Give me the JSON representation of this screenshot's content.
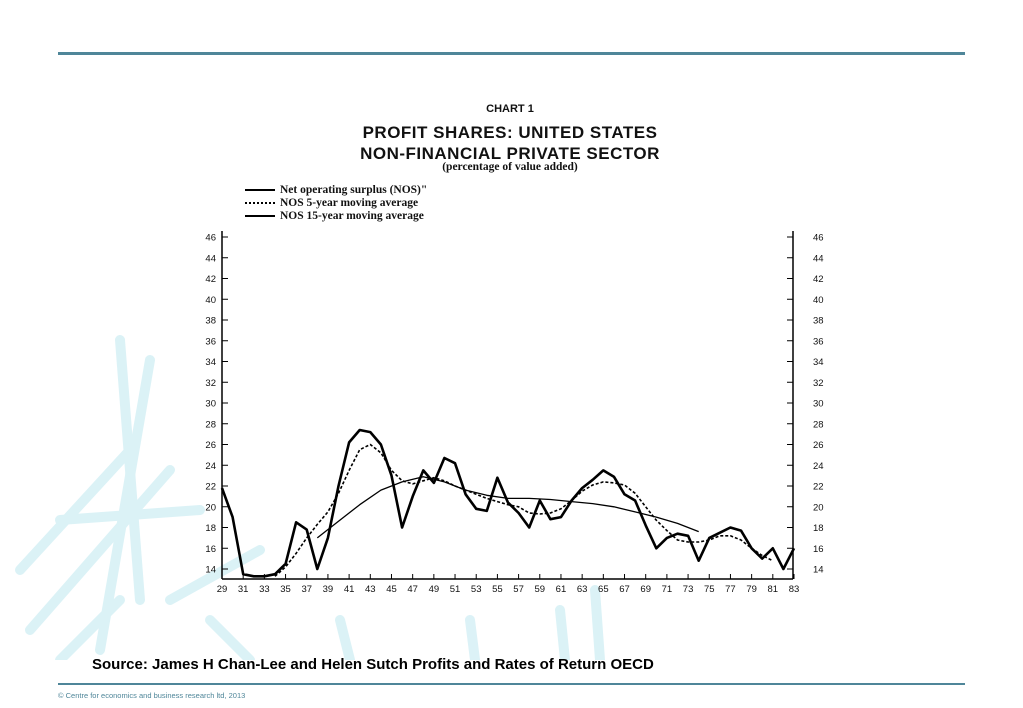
{
  "header": {
    "chart_label": "CHART 1"
  },
  "chart_data": {
    "type": "line",
    "title": "PROFIT SHARES: UNITED STATES",
    "title_line2": "NON-FINANCIAL PRIVATE SECTOR",
    "subtitle": "(percentage of value added)",
    "x_tick_labels": [
      "29",
      "31",
      "33",
      "35",
      "37",
      "39",
      "41",
      "43",
      "45",
      "47",
      "49",
      "51",
      "53",
      "55",
      "57",
      "59",
      "61",
      "63",
      "65",
      "67",
      "69",
      "71",
      "73",
      "75",
      "77",
      "79",
      "81",
      "83"
    ],
    "y_ticks": [
      14,
      16,
      18,
      20,
      22,
      24,
      26,
      28,
      30,
      32,
      34,
      36,
      38,
      40,
      42,
      44,
      46
    ],
    "xlim": [
      1929,
      1983
    ],
    "ylim": [
      13,
      47
    ],
    "grid": false,
    "legend_position": "top-left",
    "series": [
      {
        "name": "Net operating surplus (NOS)\"",
        "style": "solid",
        "x": [
          1929,
          1930,
          1931,
          1932,
          1933,
          1934,
          1935,
          1936,
          1937,
          1938,
          1939,
          1940,
          1941,
          1942,
          1943,
          1944,
          1945,
          1946,
          1947,
          1948,
          1949,
          1950,
          1951,
          1952,
          1953,
          1954,
          1955,
          1956,
          1957,
          1958,
          1959,
          1960,
          1961,
          1962,
          1963,
          1964,
          1965,
          1966,
          1967,
          1968,
          1969,
          1970,
          1971,
          1972,
          1973,
          1974,
          1975,
          1976,
          1977,
          1978,
          1979,
          1980,
          1981,
          1982,
          1983
        ],
        "values": [
          21.8,
          19,
          13.5,
          13.3,
          13.3,
          13.5,
          14.5,
          18.5,
          17.8,
          14,
          17,
          22,
          26.2,
          27.4,
          27.2,
          26,
          23,
          18,
          21,
          23.5,
          22.3,
          24.7,
          24.2,
          21.2,
          19.8,
          19.6,
          22.8,
          20.4,
          19.4,
          18,
          20.6,
          18.8,
          19,
          20.6,
          21.8,
          22.6,
          23.5,
          22.9,
          21.2,
          20.6,
          18.2,
          16,
          17,
          17.4,
          17.2,
          14.8,
          17,
          17.5,
          18,
          17.7,
          16,
          15,
          16,
          14,
          16
        ]
      },
      {
        "name": "NOS 5-year moving average",
        "style": "dotted",
        "x": [
          1934,
          1935,
          1936,
          1937,
          1938,
          1939,
          1940,
          1941,
          1942,
          1943,
          1944,
          1945,
          1946,
          1947,
          1948,
          1949,
          1950,
          1951,
          1952,
          1953,
          1954,
          1955,
          1956,
          1957,
          1958,
          1959,
          1960,
          1961,
          1962,
          1963,
          1964,
          1965,
          1966,
          1967,
          1968,
          1969,
          1970,
          1971,
          1972,
          1973,
          1974,
          1975,
          1976,
          1977,
          1978,
          1979,
          1980,
          1981
        ],
        "values": [
          13.3,
          14.2,
          15.5,
          17,
          18.3,
          19.5,
          21.3,
          23.5,
          25.5,
          26,
          25.2,
          23.5,
          22.5,
          22.2,
          22.5,
          22.8,
          22.5,
          22,
          21.6,
          21.2,
          20.8,
          20.5,
          20.2,
          20,
          19.4,
          19.3,
          19.4,
          19.8,
          20.6,
          21.5,
          22.1,
          22.4,
          22.3,
          22.1,
          21.3,
          20,
          18.7,
          17.7,
          16.8,
          16.6,
          16.6,
          16.8,
          17.2,
          17.2,
          16.8,
          16,
          15.3,
          14.8
        ]
      },
      {
        "name": "NOS 15-year moving average",
        "style": "solid",
        "x": [
          1938,
          1940,
          1942,
          1944,
          1946,
          1948,
          1950,
          1952,
          1954,
          1956,
          1958,
          1960,
          1962,
          1964,
          1966,
          1968,
          1970,
          1972,
          1974
        ],
        "values": [
          17,
          18.6,
          20.2,
          21.6,
          22.4,
          22.9,
          22.4,
          21.6,
          21.1,
          20.8,
          20.8,
          20.7,
          20.5,
          20.3,
          20,
          19.5,
          19,
          18.4,
          17.6
        ]
      }
    ]
  },
  "footer": {
    "source": "Source: James H Chan-Lee and Helen Sutch Profits and Rates of Return OECD",
    "copyright": "© Centre for economics and business research ltd, 2013"
  }
}
